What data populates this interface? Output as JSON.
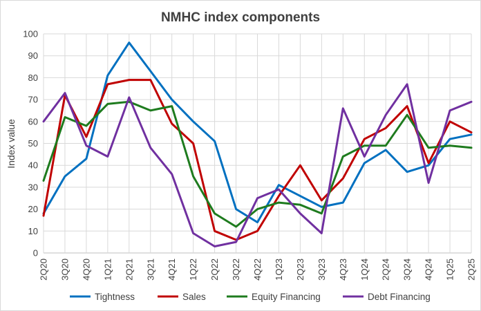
{
  "chart_data": {
    "type": "line",
    "title": "NMHC  index components",
    "xlabel": "",
    "ylabel": "Index value",
    "ylim": [
      0,
      100
    ],
    "yticks": [
      0,
      10,
      20,
      30,
      40,
      50,
      60,
      70,
      80,
      90,
      100
    ],
    "grid": true,
    "legend": "bottom",
    "categories": [
      "2Q20",
      "3Q20",
      "4Q20",
      "1Q21",
      "2Q21",
      "3Q21",
      "4Q21",
      "1Q22",
      "2Q22",
      "3Q22",
      "4Q22",
      "1Q23",
      "2Q23",
      "3Q23",
      "4Q23",
      "1Q24",
      "2Q24",
      "3Q24",
      "4Q24",
      "1Q25",
      "2Q25"
    ],
    "series": [
      {
        "name": "Tightness",
        "color": "#0070c0",
        "values": [
          18,
          35,
          43,
          81,
          96,
          83,
          70,
          60,
          51,
          20,
          14,
          31,
          26,
          21,
          23,
          41,
          47,
          37,
          40,
          52,
          54
        ]
      },
      {
        "name": "Sales",
        "color": "#c00000",
        "values": [
          17,
          72,
          53,
          77,
          79,
          79,
          59,
          50,
          10,
          6,
          10,
          26,
          40,
          24,
          34,
          52,
          57,
          67,
          41,
          60,
          55
        ]
      },
      {
        "name": "Equity Financing",
        "color": "#1e7b1e",
        "values": [
          33,
          62,
          58,
          68,
          69,
          65,
          67,
          35,
          18,
          12,
          20,
          23,
          22,
          18,
          44,
          49,
          49,
          63,
          48,
          49,
          48
        ]
      },
      {
        "name": "Debt Financing",
        "color": "#7030a0",
        "values": [
          60,
          73,
          49,
          44,
          71,
          48,
          36,
          9,
          3,
          5,
          25,
          29,
          18,
          9,
          66,
          44,
          63,
          77,
          32,
          65,
          69
        ]
      }
    ]
  }
}
